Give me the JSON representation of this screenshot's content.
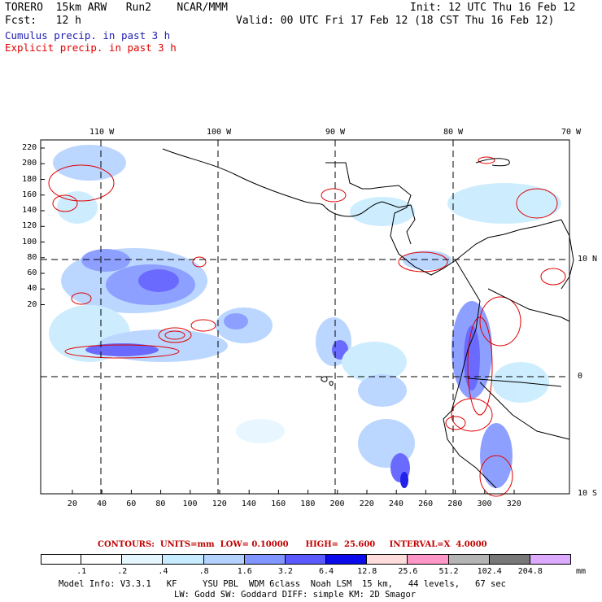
{
  "header": {
    "left_line1": "TORERO  15km ARW   Run2    NCAR/MMM",
    "left_line2": "Fcst:   12 h",
    "right_line1": "Init: 12 UTC Thu 16 Feb 12",
    "right_line2": "Valid: 00 UTC Fri 17 Feb 12 (18 CST Thu 16 Feb 12)"
  },
  "legend": {
    "cumulus": "Cumulus precip. in past 3 h",
    "explicit": "Explicit precip. in past 3 h",
    "cumulus_color": "#1e1eb4",
    "explicit_color": "#e00000"
  },
  "axes": {
    "top_lon": [
      "110 W",
      "100 W",
      "90 W",
      "80 W",
      "70 W"
    ],
    "right_lat": [
      "10 N",
      "0",
      "10 S"
    ],
    "left_ticks": [
      "220",
      "200",
      "180",
      "160",
      "140",
      "120",
      "100",
      "80",
      "60",
      "40",
      "20"
    ],
    "bottom_ticks": [
      "20",
      "40",
      "60",
      "80",
      "100",
      "120",
      "140",
      "160",
      "180",
      "200",
      "220",
      "240",
      "260",
      "280",
      "300",
      "320"
    ]
  },
  "contour_label": "CONTOURS:  UNITS=mm  LOW= 0.10000      HIGH=  25.600     INTERVAL=X  4.0000",
  "colorbar": {
    "labels": [
      ".1",
      ".2",
      ".4",
      ".8",
      "1.6",
      "3.2",
      "6.4",
      "12.8",
      "25.6",
      "51.2",
      "102.4",
      "204.8"
    ],
    "colors": [
      "#ffffff",
      "#ffffff",
      "#e6f6ff",
      "#c8ecff",
      "#b4d2ff",
      "#8296ff",
      "#5a5aff",
      "#0a0aeb",
      "#ffdcdc",
      "#ff96c8",
      "#b4b4b4",
      "#787878",
      "#dcaaff"
    ],
    "unit": "mm"
  },
  "footer": {
    "line1": "Model Info: V3.3.1   KF     YSU PBL  WDM 6class  Noah LSM  15 km,   44 levels,   67 sec",
    "line2": "LW: Godd SW: Goddard DIFF: simple KM: 2D Smagor"
  }
}
